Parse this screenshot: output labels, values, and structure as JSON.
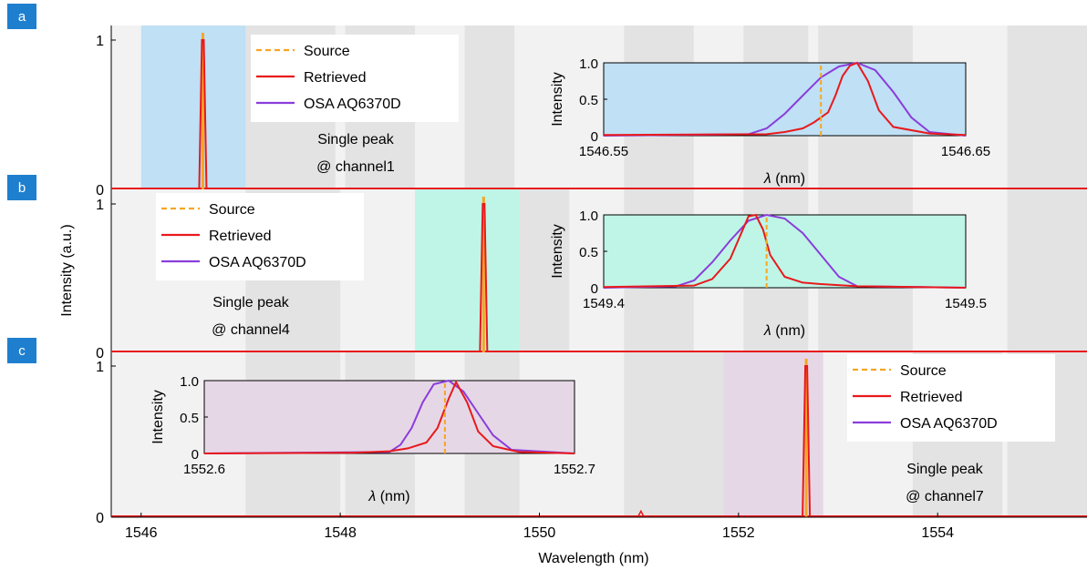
{
  "xlabel": "Wavelength (nm)",
  "ylabel": "Intensity (a.u.)",
  "x_ticks": [
    "1546",
    "1548",
    "1550",
    "1552",
    "1554"
  ],
  "colors": {
    "source": "#f5a623",
    "retrieved": "#e8191c",
    "osa": "#8a3ddb",
    "band_light": "#f2f2f2",
    "band_dark": "#e3e3e3",
    "panel_label_bg": "#1f7fcf"
  },
  "chart_data": [
    {
      "type": "line",
      "panel_label": "a",
      "xlim": [
        1545.7,
        1555.5
      ],
      "ylim": [
        0,
        1
      ],
      "y_ticks": [
        "0",
        "1"
      ],
      "channel_bands": [
        {
          "from": 1546.0,
          "to": 1547.05,
          "highlight": true
        },
        {
          "from": 1547.05,
          "to": 1547.95,
          "highlight": false
        },
        {
          "from": 1548.05,
          "to": 1548.75,
          "highlight": false
        },
        {
          "from": 1549.25,
          "to": 1549.75,
          "highlight": false
        },
        {
          "from": 1550.85,
          "to": 1551.55,
          "highlight": false
        },
        {
          "from": 1552.05,
          "to": 1552.7,
          "highlight": false
        },
        {
          "from": 1552.8,
          "to": 1553.75,
          "highlight": false
        },
        {
          "from": 1554.7,
          "to": 1555.5,
          "highlight": false
        }
      ],
      "highlight_color": "#bfe0f5",
      "peak": 1546.62,
      "legend": [
        "Source",
        "Retrieved",
        "OSA  AQ6370D"
      ],
      "legend_position": "top-center",
      "annotation": [
        "Single peak",
        "@ channel1"
      ],
      "inset": {
        "xlim": [
          1546.55,
          1546.65
        ],
        "x_ticks": [
          "1546.55",
          "1546.65"
        ],
        "y_ticks": [
          "0",
          "0.5",
          "1.0"
        ],
        "xlabel_symbol": "λ",
        "xlabel_unit": " (nm)",
        "ylabel": "Intensity",
        "background": "#bfe0f5",
        "source_x": 1546.61,
        "retrieved": {
          "x": [
            1546.55,
            1546.595,
            1546.6,
            1546.605,
            1546.608,
            1546.61,
            1546.612,
            1546.614,
            1546.616,
            1546.618,
            1546.62,
            1546.623,
            1546.626,
            1546.63,
            1546.64,
            1546.65
          ],
          "y": [
            0.01,
            0.02,
            0.05,
            0.1,
            0.18,
            0.25,
            0.32,
            0.55,
            0.82,
            0.96,
            1.0,
            0.75,
            0.35,
            0.12,
            0.03,
            0.01
          ]
        },
        "osa": {
          "x": [
            1546.55,
            1546.59,
            1546.595,
            1546.6,
            1546.605,
            1546.61,
            1546.615,
            1546.62,
            1546.625,
            1546.63,
            1546.635,
            1546.64,
            1546.65
          ],
          "y": [
            0.0,
            0.02,
            0.1,
            0.3,
            0.55,
            0.8,
            0.95,
            1.0,
            0.9,
            0.6,
            0.25,
            0.05,
            0.0
          ]
        }
      }
    },
    {
      "type": "line",
      "panel_label": "b",
      "xlim": [
        1545.7,
        1555.5
      ],
      "ylim": [
        0,
        1
      ],
      "y_ticks": [
        "0",
        "1"
      ],
      "channel_bands": [
        {
          "from": 1547.05,
          "to": 1548.0,
          "highlight": false
        },
        {
          "from": 1548.75,
          "to": 1549.8,
          "highlight": true
        },
        {
          "from": 1549.8,
          "to": 1550.3,
          "highlight": false
        },
        {
          "from": 1550.85,
          "to": 1551.55,
          "highlight": false
        },
        {
          "from": 1552.05,
          "to": 1552.7,
          "highlight": false
        },
        {
          "from": 1552.8,
          "to": 1553.75,
          "highlight": false
        },
        {
          "from": 1554.7,
          "to": 1555.5,
          "highlight": false
        }
      ],
      "highlight_color": "#bff5e6",
      "peak": 1549.44,
      "legend": [
        "Source",
        "Retrieved",
        "OSA  AQ6370D"
      ],
      "legend_position": "top-left",
      "annotation": [
        "Single peak",
        "@ channel4"
      ],
      "inset": {
        "xlim": [
          1549.4,
          1549.5
        ],
        "x_ticks": [
          "1549.4",
          "1549.5"
        ],
        "y_ticks": [
          "0",
          "0.5",
          "1.0"
        ],
        "xlabel_symbol": "λ",
        "xlabel_unit": " (nm)",
        "ylabel": "Intensity",
        "background": "#bff5e6",
        "source_x": 1549.445,
        "retrieved": {
          "x": [
            1549.4,
            1549.425,
            1549.43,
            1549.435,
            1549.438,
            1549.44,
            1549.442,
            1549.444,
            1549.446,
            1549.45,
            1549.455,
            1549.46,
            1549.47,
            1549.5
          ],
          "y": [
            0.01,
            0.03,
            0.12,
            0.4,
            0.75,
            0.98,
            1.0,
            0.8,
            0.45,
            0.15,
            0.07,
            0.05,
            0.02,
            0.0
          ]
        },
        "osa": {
          "x": [
            1549.4,
            1549.42,
            1549.425,
            1549.43,
            1549.435,
            1549.44,
            1549.445,
            1549.45,
            1549.455,
            1549.46,
            1549.465,
            1549.47,
            1549.5
          ],
          "y": [
            0.0,
            0.02,
            0.1,
            0.35,
            0.65,
            0.92,
            1.0,
            0.95,
            0.75,
            0.45,
            0.15,
            0.02,
            0.0
          ]
        }
      }
    },
    {
      "type": "line",
      "panel_label": "c",
      "xlim": [
        1545.7,
        1555.5
      ],
      "ylim": [
        0,
        1
      ],
      "y_ticks": [
        "0",
        "1"
      ],
      "channel_bands": [
        {
          "from": 1547.05,
          "to": 1548.0,
          "highlight": false
        },
        {
          "from": 1548.05,
          "to": 1548.75,
          "highlight": false
        },
        {
          "from": 1549.25,
          "to": 1549.8,
          "highlight": false
        },
        {
          "from": 1550.85,
          "to": 1551.85,
          "highlight": false
        },
        {
          "from": 1551.85,
          "to": 1552.85,
          "highlight": true
        },
        {
          "from": 1553.75,
          "to": 1554.65,
          "highlight": false
        },
        {
          "from": 1554.7,
          "to": 1555.5,
          "highlight": false
        }
      ],
      "highlight_color": "#e6d7e6",
      "peak": 1552.68,
      "minor_peak": {
        "x": 1551.02,
        "y": 0.04
      },
      "legend": [
        "Source",
        "Retrieved",
        "OSA  AQ6370D"
      ],
      "legend_position": "top-right",
      "annotation": [
        "Single peak",
        "@ channel7"
      ],
      "inset": {
        "xlim": [
          1552.6,
          1552.7
        ],
        "x_ticks": [
          "1552.6",
          "1552.7"
        ],
        "y_ticks": [
          "0",
          "0.5",
          "1.0"
        ],
        "xlabel_symbol": "λ",
        "xlabel_unit": " (nm)",
        "ylabel": "Intensity",
        "background": "#e6d7e6",
        "source_x": 1552.665,
        "retrieved": {
          "x": [
            1552.6,
            1552.64,
            1552.65,
            1552.655,
            1552.66,
            1552.663,
            1552.666,
            1552.668,
            1552.671,
            1552.674,
            1552.678,
            1552.685,
            1552.7
          ],
          "y": [
            0.0,
            0.01,
            0.03,
            0.07,
            0.15,
            0.35,
            0.75,
            0.98,
            0.7,
            0.3,
            0.1,
            0.02,
            0.0
          ]
        },
        "osa": {
          "x": [
            1552.6,
            1552.65,
            1552.653,
            1552.656,
            1552.659,
            1552.662,
            1552.666,
            1552.67,
            1552.674,
            1552.678,
            1552.683,
            1552.7
          ],
          "y": [
            0.0,
            0.02,
            0.12,
            0.35,
            0.7,
            0.95,
            1.0,
            0.85,
            0.55,
            0.25,
            0.05,
            0.0
          ]
        }
      }
    }
  ]
}
